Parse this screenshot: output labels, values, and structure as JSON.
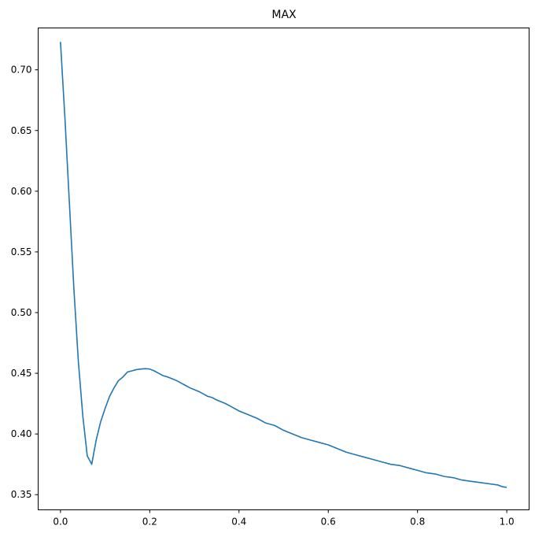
{
  "chart_data": {
    "type": "line",
    "title": "MAX",
    "xlabel": "",
    "ylabel": "",
    "xlim": [
      -0.05,
      1.05
    ],
    "ylim": [
      0.3375,
      0.7345
    ],
    "xticks": [
      0.0,
      0.2,
      0.4,
      0.6,
      0.8,
      1.0
    ],
    "xtick_labels": [
      "0.0",
      "0.2",
      "0.4",
      "0.6",
      "0.8",
      "1.0"
    ],
    "yticks": [
      0.35,
      0.4,
      0.45,
      0.5,
      0.55,
      0.6,
      0.65,
      0.7
    ],
    "ytick_labels": [
      "0.35",
      "0.40",
      "0.45",
      "0.50",
      "0.55",
      "0.60",
      "0.65",
      "0.70"
    ],
    "grid": false,
    "line_color": "#1f77b4",
    "series": [
      {
        "x": [
          0.0,
          0.01,
          0.02,
          0.03,
          0.04,
          0.05,
          0.06,
          0.07,
          0.08,
          0.09,
          0.1,
          0.11,
          0.12,
          0.13,
          0.14,
          0.15,
          0.16,
          0.17,
          0.18,
          0.19,
          0.2,
          0.21,
          0.22,
          0.23,
          0.24,
          0.25,
          0.26,
          0.27,
          0.28,
          0.29,
          0.3,
          0.31,
          0.32,
          0.33,
          0.34,
          0.35,
          0.36,
          0.37,
          0.38,
          0.39,
          0.4,
          0.42,
          0.44,
          0.46,
          0.48,
          0.5,
          0.52,
          0.54,
          0.56,
          0.58,
          0.6,
          0.62,
          0.64,
          0.66,
          0.68,
          0.7,
          0.72,
          0.74,
          0.76,
          0.78,
          0.8,
          0.82,
          0.84,
          0.86,
          0.88,
          0.9,
          0.92,
          0.94,
          0.96,
          0.98,
          0.99,
          1.0
        ],
        "y": [
          0.723,
          0.66,
          0.59,
          0.52,
          0.46,
          0.415,
          0.382,
          0.375,
          0.395,
          0.41,
          0.421,
          0.431,
          0.438,
          0.444,
          0.447,
          0.451,
          0.452,
          0.453,
          0.4535,
          0.4538,
          0.4535,
          0.452,
          0.45,
          0.448,
          0.447,
          0.4455,
          0.444,
          0.442,
          0.44,
          0.438,
          0.4365,
          0.435,
          0.433,
          0.431,
          0.43,
          0.428,
          0.4265,
          0.425,
          0.423,
          0.421,
          0.419,
          0.416,
          0.413,
          0.409,
          0.407,
          0.403,
          0.4,
          0.397,
          0.395,
          0.393,
          0.391,
          0.388,
          0.385,
          0.383,
          0.381,
          0.379,
          0.377,
          0.375,
          0.374,
          0.372,
          0.37,
          0.368,
          0.367,
          0.365,
          0.364,
          0.362,
          0.361,
          0.36,
          0.359,
          0.358,
          0.3565,
          0.356
        ]
      }
    ]
  }
}
